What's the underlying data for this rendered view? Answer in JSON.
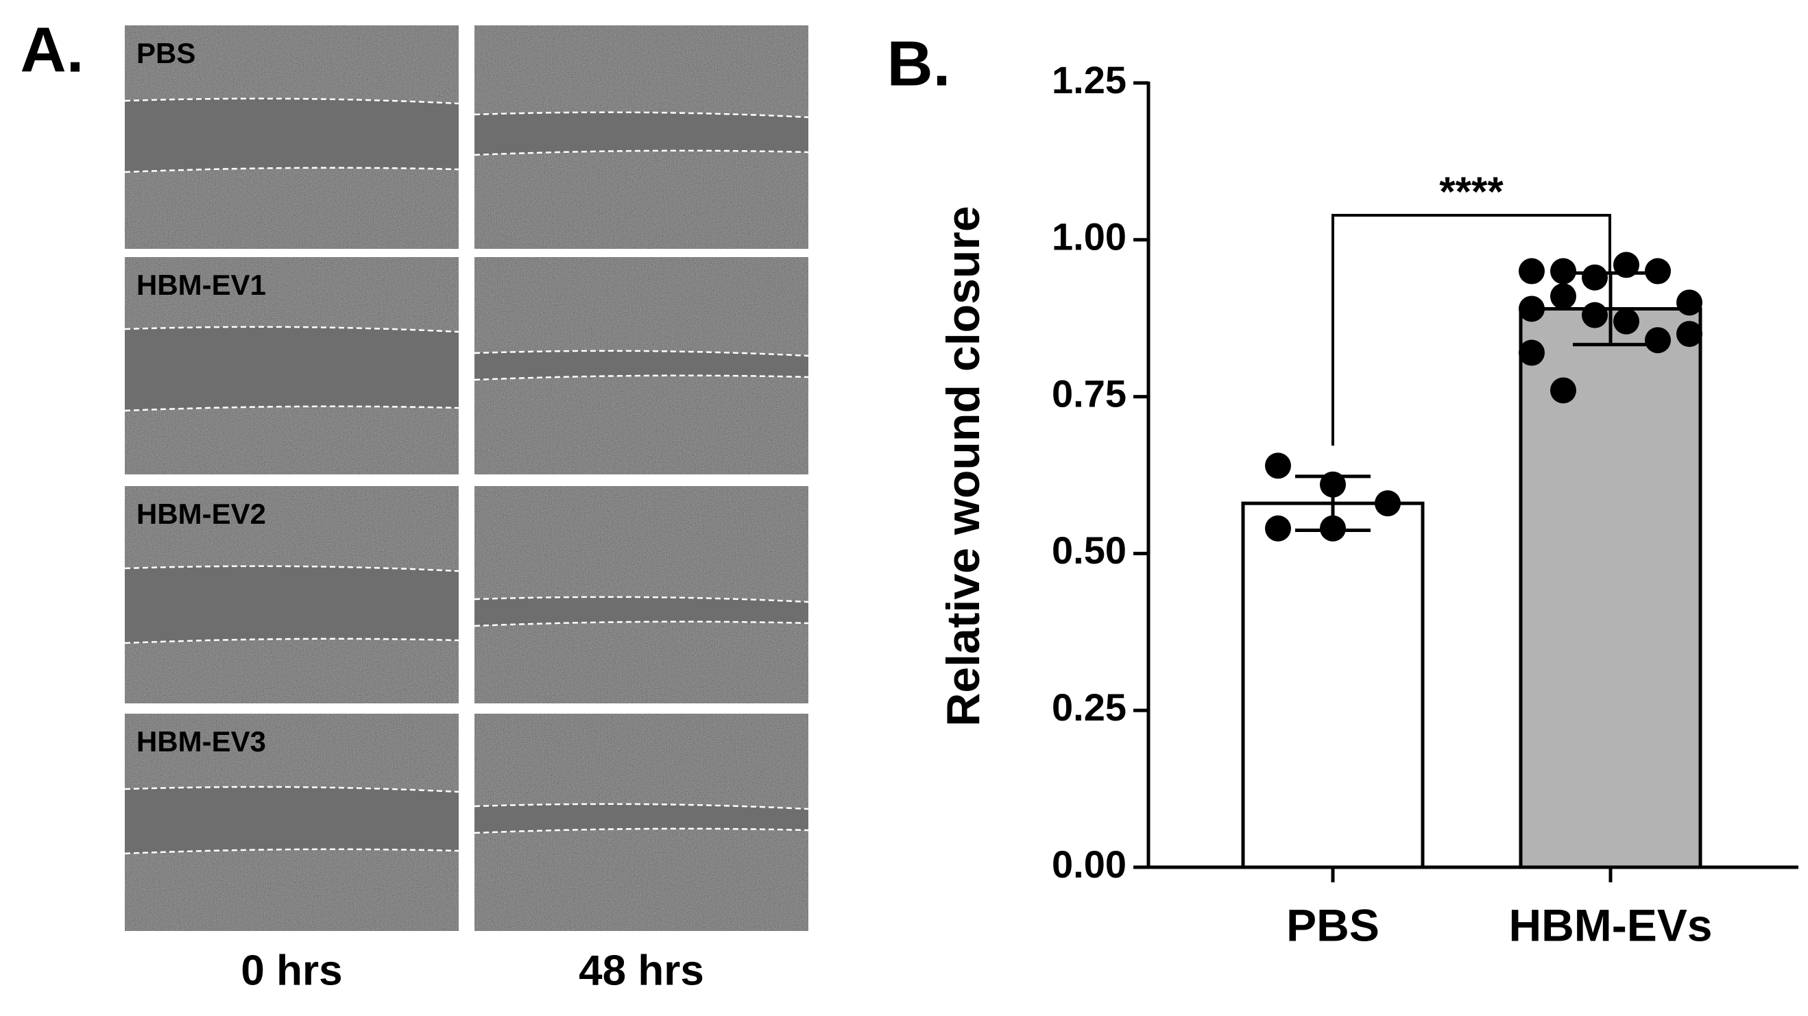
{
  "panel_a": {
    "label": "A.",
    "images": [
      {
        "label": "PBS"
      },
      {
        "label": "HBM-EV1"
      },
      {
        "label": "HBM-EV2"
      },
      {
        "label": "HBM-EV3"
      }
    ],
    "timepoints": [
      "0 hrs",
      "48 hrs"
    ]
  },
  "chart_data": {
    "type": "bar",
    "panel_label": "B.",
    "ylabel": "Relative wound closure",
    "categories": [
      "PBS",
      "HBM-EVs"
    ],
    "values": [
      0.58,
      0.89
    ],
    "errors": [
      0.043,
      0.057
    ],
    "points": [
      [
        0.64,
        0.61,
        0.58,
        0.54,
        0.54
      ],
      [
        0.95,
        0.95,
        0.94,
        0.96,
        0.95,
        0.9,
        0.89,
        0.91,
        0.88,
        0.87,
        0.84,
        0.85,
        0.82,
        0.76
      ]
    ],
    "colors": [
      "#ffffff",
      "#b3b3b3"
    ],
    "ylim": [
      0,
      1.25
    ],
    "yticks": [
      {
        "value": 0,
        "label": "0.00"
      },
      {
        "value": 0.25,
        "label": "0.25"
      },
      {
        "value": 0.5,
        "label": "0.50"
      },
      {
        "value": 0.75,
        "label": "0.75"
      },
      {
        "value": 1,
        "label": "1.00"
      },
      {
        "value": 1.25,
        "label": "1.25"
      }
    ],
    "significance": "****"
  }
}
